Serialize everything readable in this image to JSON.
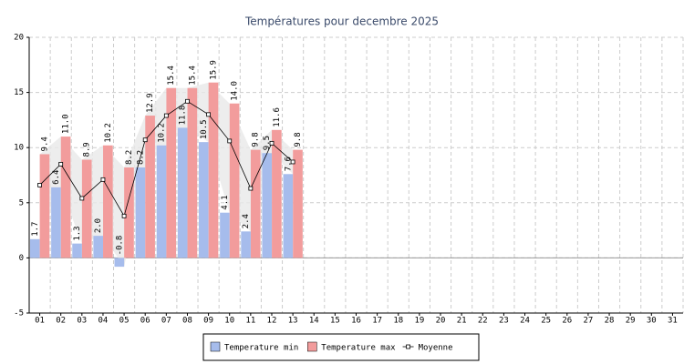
{
  "chart_data": {
    "type": "bar",
    "title": "Températures pour decembre 2025",
    "categories": [
      "01",
      "02",
      "03",
      "04",
      "05",
      "06",
      "07",
      "08",
      "09",
      "10",
      "11",
      "12",
      "13",
      "14",
      "15",
      "16",
      "17",
      "18",
      "19",
      "20",
      "21",
      "22",
      "23",
      "24",
      "25",
      "26",
      "27",
      "28",
      "29",
      "30",
      "31"
    ],
    "series": [
      {
        "name": "Temperature min",
        "color": "#a6bcec",
        "values": [
          1.7,
          6.4,
          1.3,
          2.0,
          -0.8,
          8.2,
          10.2,
          11.8,
          10.5,
          4.1,
          2.4,
          9.5,
          7.6,
          null,
          null,
          null,
          null,
          null,
          null,
          null,
          null,
          null,
          null,
          null,
          null,
          null,
          null,
          null,
          null,
          null,
          null
        ],
        "value_labels": [
          "1.7",
          "6.4",
          "1.3",
          "2.0",
          "-0.8",
          "8.2",
          "10.2",
          "11.8",
          "10.5",
          "4.1",
          "2.4",
          "9.5",
          "7.6",
          null,
          null,
          null,
          null,
          null,
          null,
          null,
          null,
          null,
          null,
          null,
          null,
          null,
          null,
          null,
          null,
          null,
          null
        ]
      },
      {
        "name": "Temperature max",
        "color": "#f29c9c",
        "values": [
          9.4,
          11.0,
          8.9,
          10.2,
          8.2,
          12.9,
          15.4,
          15.4,
          15.9,
          14.0,
          9.8,
          11.6,
          9.8,
          null,
          null,
          null,
          null,
          null,
          null,
          null,
          null,
          null,
          null,
          null,
          null,
          null,
          null,
          null,
          null,
          null,
          null
        ],
        "value_labels": [
          "9.4",
          "11.0",
          "8.9",
          "10.2",
          "8.2",
          "12.9",
          "15.4",
          "15.4",
          "15.9",
          "14.0",
          "9.8",
          "11.6",
          "9.8",
          null,
          null,
          null,
          null,
          null,
          null,
          null,
          null,
          null,
          null,
          null,
          null,
          null,
          null,
          null,
          null,
          null,
          null
        ]
      },
      {
        "name": "Moyenne",
        "color": "#000000",
        "type": "line",
        "values": [
          6.6,
          8.5,
          5.4,
          7.1,
          3.8,
          10.7,
          12.9,
          14.2,
          13.0,
          10.6,
          6.3,
          10.4,
          8.7,
          null,
          null,
          null,
          null,
          null,
          null,
          null,
          null,
          null,
          null,
          null,
          null,
          null,
          null,
          null,
          null,
          null,
          null
        ]
      }
    ],
    "ylim": [
      -5,
      20
    ],
    "yticks": [
      -5,
      0,
      5,
      10,
      15,
      20
    ],
    "grid": true,
    "legend": "bottom"
  }
}
